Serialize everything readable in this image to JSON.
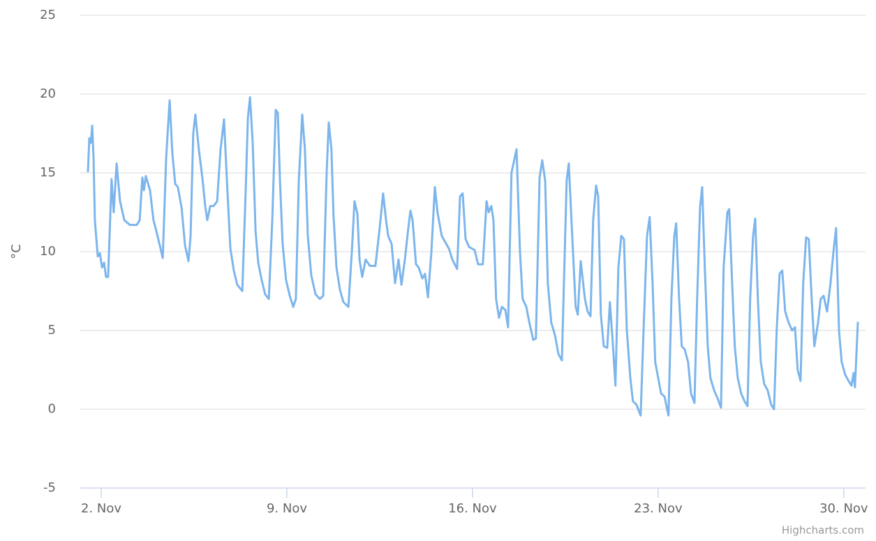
{
  "chart_data": {
    "type": "line",
    "y_label": "°C",
    "credits": "Highcharts.com",
    "x": [
      1.5,
      1.55,
      1.61,
      1.66,
      1.71,
      1.76,
      1.87,
      1.95,
      2.03,
      2.11,
      2.18,
      2.26,
      2.39,
      2.47,
      2.58,
      2.71,
      2.87,
      3.08,
      3.34,
      3.45,
      3.55,
      3.61,
      3.68,
      3.84,
      3.97,
      4.08,
      4.18,
      4.32,
      4.45,
      4.58,
      4.68,
      4.79,
      4.89,
      5.03,
      5.16,
      5.29,
      5.37,
      5.47,
      5.55,
      5.68,
      5.82,
      5.92,
      6.0,
      6.11,
      6.24,
      6.37,
      6.5,
      6.63,
      6.74,
      6.87,
      7.0,
      7.13,
      7.32,
      7.45,
      7.53,
      7.61,
      7.71,
      7.82,
      7.92,
      8.05,
      8.18,
      8.32,
      8.45,
      8.58,
      8.66,
      8.74,
      8.84,
      8.97,
      9.11,
      9.24,
      9.34,
      9.45,
      9.58,
      9.68,
      9.79,
      9.92,
      10.08,
      10.24,
      10.37,
      10.5,
      10.58,
      10.68,
      10.76,
      10.87,
      11.0,
      11.13,
      11.32,
      11.45,
      11.55,
      11.66,
      11.74,
      11.84,
      11.97,
      12.13,
      12.34,
      12.5,
      12.63,
      12.74,
      12.82,
      12.95,
      13.08,
      13.21,
      13.32,
      13.45,
      13.58,
      13.66,
      13.74,
      13.87,
      13.97,
      14.11,
      14.21,
      14.32,
      14.45,
      14.58,
      14.68,
      14.84,
      15.11,
      15.24,
      15.42,
      15.53,
      15.63,
      15.74,
      15.87,
      16.08,
      16.21,
      16.39,
      16.53,
      16.61,
      16.71,
      16.79,
      16.89,
      17.0,
      17.11,
      17.24,
      17.34,
      17.47,
      17.66,
      17.79,
      17.89,
      18.03,
      18.13,
      18.29,
      18.39,
      18.53,
      18.63,
      18.74,
      18.84,
      18.97,
      19.11,
      19.24,
      19.37,
      19.55,
      19.63,
      19.76,
      19.89,
      19.97,
      20.08,
      20.24,
      20.34,
      20.45,
      20.55,
      20.66,
      20.74,
      20.84,
      20.95,
      21.08,
      21.18,
      21.29,
      21.39,
      21.5,
      21.61,
      21.71,
      21.82,
      21.95,
      22.05,
      22.18,
      22.34,
      22.45,
      22.58,
      22.68,
      22.79,
      22.89,
      23.0,
      23.11,
      23.24,
      23.39,
      23.5,
      23.61,
      23.68,
      23.79,
      23.89,
      24.0,
      24.13,
      24.24,
      24.37,
      24.47,
      24.58,
      24.66,
      24.76,
      24.87,
      24.97,
      25.11,
      25.24,
      25.37,
      25.47,
      25.61,
      25.68,
      25.79,
      25.89,
      26.0,
      26.13,
      26.26,
      26.37,
      26.47,
      26.58,
      26.66,
      26.76,
      26.87,
      27.0,
      27.13,
      27.26,
      27.37,
      27.47,
      27.58,
      27.68,
      27.79,
      27.92,
      28.05,
      28.16,
      28.26,
      28.37,
      28.47,
      28.58,
      28.68,
      28.79,
      28.89,
      29.03,
      29.13,
      29.24,
      29.37,
      29.5,
      29.61,
      29.71,
      29.82,
      29.92,
      30.05,
      30.18,
      30.29,
      30.37,
      30.42,
      30.53
    ],
    "series": [
      {
        "color": "#7cb5ec",
        "values": [
          15.1,
          17.2,
          16.9,
          18.0,
          16,
          12,
          9.7,
          9.9,
          9.0,
          9.3,
          8.4,
          8.4,
          14.6,
          12.5,
          15.6,
          13.2,
          12.0,
          11.7,
          11.7,
          12.0,
          14.7,
          13.9,
          14.8,
          13.9,
          12.0,
          11.3,
          10.6,
          9.6,
          16,
          19.6,
          16.3,
          14.3,
          14.1,
          12.8,
          10.4,
          9.4,
          11,
          17.5,
          18.7,
          16.5,
          14.6,
          12.9,
          12.0,
          12.9,
          12.9,
          13.2,
          16.5,
          18.4,
          14.5,
          10.2,
          8.8,
          7.9,
          7.5,
          14,
          18.5,
          19.8,
          17,
          11.3,
          9.3,
          8.2,
          7.3,
          7.0,
          12,
          19.0,
          18.8,
          14.5,
          10.5,
          8.2,
          7.2,
          6.5,
          7,
          14.5,
          18.7,
          16.5,
          11,
          8.5,
          7.3,
          7.0,
          7.2,
          15,
          18.2,
          16.5,
          12.3,
          9,
          7.6,
          6.8,
          6.5,
          10,
          13.2,
          12.4,
          9.5,
          8.4,
          9.5,
          9.1,
          9.1,
          11.5,
          13.7,
          12.0,
          11.0,
          10.5,
          8.0,
          9.5,
          7.9,
          9.5,
          11.5,
          12.6,
          12.0,
          9.2,
          9.0,
          8.3,
          8.6,
          7.1,
          10,
          14.1,
          12.5,
          11.0,
          10.2,
          9.5,
          8.9,
          13.5,
          13.7,
          10.8,
          10.3,
          10.1,
          9.2,
          9.2,
          13.2,
          12.5,
          12.9,
          12.0,
          7.0,
          5.8,
          6.5,
          6.3,
          5.2,
          15,
          16.5,
          10,
          7,
          6.5,
          5.6,
          4.4,
          4.5,
          14.7,
          15.8,
          14.5,
          8,
          5.5,
          4.7,
          3.5,
          3.1,
          14.5,
          15.6,
          11,
          6.5,
          6.0,
          9.4,
          7,
          6.2,
          5.9,
          12,
          14.2,
          13.5,
          6,
          4.0,
          3.9,
          6.8,
          4.2,
          1.5,
          9,
          11.0,
          10.8,
          5,
          2,
          0.5,
          0.3,
          -0.4,
          5,
          11,
          12.2,
          8,
          3,
          2,
          1,
          0.8,
          -0.4,
          7,
          11,
          11.8,
          7,
          4,
          3.8,
          3,
          1,
          0.4,
          7,
          12.8,
          14.1,
          9,
          4,
          2,
          1.2,
          0.7,
          0.1,
          9,
          12.5,
          12.7,
          8,
          4,
          2,
          1,
          0.5,
          0.2,
          7,
          11,
          12.1,
          7,
          3,
          1.6,
          1.2,
          0.3,
          0,
          5,
          8.6,
          8.8,
          6.2,
          5.5,
          5,
          5.2,
          2.5,
          1.8,
          8,
          10.9,
          10.8,
          7,
          4.0,
          5.5,
          7,
          7.2,
          6.2,
          8,
          10,
          11.5,
          5,
          3,
          2.2,
          1.8,
          1.5,
          2.3,
          1.4,
          5.5
        ]
      }
    ],
    "xlim": [
      1.21,
      30.82
    ],
    "xticks": [
      {
        "value": 2,
        "label": "2. Nov"
      },
      {
        "value": 9,
        "label": "9. Nov"
      },
      {
        "value": 16,
        "label": "16. Nov"
      },
      {
        "value": 23,
        "label": "23. Nov"
      },
      {
        "value": 30,
        "label": "30. Nov"
      }
    ],
    "ylim": [
      -5,
      25
    ],
    "yticks": [
      -5,
      0,
      5,
      10,
      15,
      20,
      25
    ],
    "grid": true
  }
}
